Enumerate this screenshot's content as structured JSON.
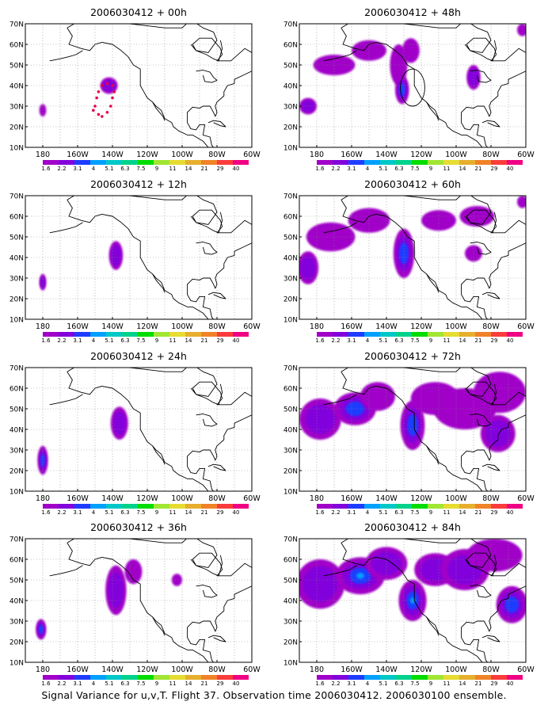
{
  "caption": "Signal Variance for u,v,T. Flight 37. Observation time 2006030412. 2006030100 ensemble.",
  "axes": {
    "y_ticks": [
      "10N",
      "20N",
      "30N",
      "40N",
      "50N",
      "60N",
      "70N"
    ],
    "x_ticks": [
      "180",
      "160W",
      "140W",
      "120W",
      "100W",
      "80W",
      "60W"
    ],
    "x_range_deg_east": [
      -190,
      -60
    ],
    "y_range_deg_north": [
      10,
      70
    ],
    "grid": "dotted"
  },
  "colorbar": {
    "labels": [
      "1.6",
      "2.2",
      "3.1",
      "4",
      "5.1",
      "6.3",
      "7.5",
      "9",
      "11",
      "14",
      "21",
      "29",
      "40"
    ],
    "colors": [
      "#a000c8",
      "#8200dc",
      "#1e3cff",
      "#00a0ff",
      "#00c8c8",
      "#00d28c",
      "#00dc00",
      "#a0e632",
      "#e6dc32",
      "#e6af2d",
      "#f08228",
      "#fa3c3c",
      "#f00082"
    ]
  },
  "chart_data": [
    {
      "type": "heatmap",
      "title": "2006030412 + 00h",
      "field": "signal variance",
      "blobs": [
        {
          "lon": -180,
          "lat": 28,
          "rlon": 2,
          "rlat": 3,
          "level": 1
        },
        {
          "lon": -142,
          "lat": 40,
          "rlon": 5,
          "rlat": 4,
          "level": 2
        }
      ],
      "flight_track": [
        [
          -148,
          37
        ],
        [
          -149,
          34
        ],
        [
          -150,
          30
        ],
        [
          -151,
          28
        ],
        [
          -148,
          26
        ],
        [
          -146,
          25
        ],
        [
          -143,
          27
        ],
        [
          -141,
          30
        ],
        [
          -140,
          34
        ],
        [
          -139,
          37
        ],
        [
          -140,
          40
        ],
        [
          -143,
          41
        ],
        [
          -146,
          40
        ]
      ],
      "circle": null
    },
    {
      "type": "heatmap",
      "title": "2006030412 + 48h",
      "field": "signal variance",
      "blobs": [
        {
          "lon": -185,
          "lat": 30,
          "rlon": 5,
          "rlat": 4,
          "level": 2
        },
        {
          "lon": -170,
          "lat": 50,
          "rlon": 12,
          "rlat": 5,
          "level": 1
        },
        {
          "lon": -150,
          "lat": 57,
          "rlon": 10,
          "rlat": 5,
          "level": 1
        },
        {
          "lon": -133,
          "lat": 50,
          "rlon": 5,
          "rlat": 10,
          "level": 1
        },
        {
          "lon": -131,
          "lat": 38,
          "rlon": 4,
          "rlat": 7,
          "level": 3
        },
        {
          "lon": -126,
          "lat": 57,
          "rlon": 5,
          "rlat": 6,
          "level": 1
        },
        {
          "lon": -90,
          "lat": 44,
          "rlon": 4,
          "rlat": 6,
          "level": 2
        },
        {
          "lon": -62,
          "lat": 67,
          "rlon": 3,
          "rlat": 3,
          "level": 1
        }
      ],
      "flight_track": [],
      "circle": {
        "lon": -125,
        "lat": 39,
        "rlon": 7,
        "rlat": 9
      }
    },
    {
      "type": "heatmap",
      "title": "2006030412 + 12h",
      "field": "signal variance",
      "blobs": [
        {
          "lon": -180,
          "lat": 28,
          "rlon": 2,
          "rlat": 4,
          "level": 2
        },
        {
          "lon": -138,
          "lat": 41,
          "rlon": 4,
          "rlat": 7,
          "level": 2
        }
      ],
      "flight_track": [],
      "circle": null
    },
    {
      "type": "heatmap",
      "title": "2006030412 + 60h",
      "field": "signal variance",
      "blobs": [
        {
          "lon": -185,
          "lat": 35,
          "rlon": 6,
          "rlat": 8,
          "level": 2
        },
        {
          "lon": -172,
          "lat": 50,
          "rlon": 14,
          "rlat": 7,
          "level": 1
        },
        {
          "lon": -150,
          "lat": 58,
          "rlon": 12,
          "rlat": 6,
          "level": 1
        },
        {
          "lon": -130,
          "lat": 42,
          "rlon": 6,
          "rlat": 12,
          "level": 3
        },
        {
          "lon": -110,
          "lat": 58,
          "rlon": 10,
          "rlat": 5,
          "level": 1
        },
        {
          "lon": -88,
          "lat": 60,
          "rlon": 10,
          "rlat": 5,
          "level": 1
        },
        {
          "lon": -90,
          "lat": 42,
          "rlon": 5,
          "rlat": 4,
          "level": 1
        },
        {
          "lon": -62,
          "lat": 67,
          "rlon": 3,
          "rlat": 3,
          "level": 1
        }
      ],
      "flight_track": [],
      "circle": null
    },
    {
      "type": "heatmap",
      "title": "2006030412 + 24h",
      "field": "signal variance",
      "blobs": [
        {
          "lon": -180,
          "lat": 25,
          "rlon": 3,
          "rlat": 7,
          "level": 3
        },
        {
          "lon": -136,
          "lat": 43,
          "rlon": 5,
          "rlat": 8,
          "level": 2
        }
      ],
      "flight_track": [],
      "circle": null
    },
    {
      "type": "heatmap",
      "title": "2006030412 + 72h",
      "field": "signal variance",
      "blobs": [
        {
          "lon": -178,
          "lat": 45,
          "rlon": 12,
          "rlat": 10,
          "level": 2
        },
        {
          "lon": -158,
          "lat": 50,
          "rlon": 12,
          "rlat": 8,
          "level": 3
        },
        {
          "lon": -145,
          "lat": 56,
          "rlon": 10,
          "rlat": 7,
          "level": 1
        },
        {
          "lon": -125,
          "lat": 42,
          "rlon": 7,
          "rlat": 12,
          "level": 3
        },
        {
          "lon": -112,
          "lat": 55,
          "rlon": 14,
          "rlat": 8,
          "level": 1
        },
        {
          "lon": -95,
          "lat": 50,
          "rlon": 18,
          "rlat": 10,
          "level": 1
        },
        {
          "lon": -75,
          "lat": 58,
          "rlon": 15,
          "rlat": 10,
          "level": 1
        },
        {
          "lon": -76,
          "lat": 38,
          "rlon": 10,
          "rlat": 9,
          "level": 2
        }
      ],
      "flight_track": [],
      "circle": null
    },
    {
      "type": "heatmap",
      "title": "2006030412 + 36h",
      "field": "signal variance",
      "blobs": [
        {
          "lon": -181,
          "lat": 26,
          "rlon": 3,
          "rlat": 5,
          "level": 3
        },
        {
          "lon": -138,
          "lat": 45,
          "rlon": 6,
          "rlat": 12,
          "level": 2
        },
        {
          "lon": -128,
          "lat": 54,
          "rlon": 5,
          "rlat": 6,
          "level": 1
        },
        {
          "lon": -103,
          "lat": 50,
          "rlon": 3,
          "rlat": 3,
          "level": 1
        }
      ],
      "flight_track": [],
      "circle": null
    },
    {
      "type": "heatmap",
      "title": "2006030412 + 84h",
      "field": "signal variance",
      "blobs": [
        {
          "lon": -178,
          "lat": 48,
          "rlon": 14,
          "rlat": 12,
          "level": 2
        },
        {
          "lon": -155,
          "lat": 52,
          "rlon": 14,
          "rlat": 9,
          "level": 4
        },
        {
          "lon": -140,
          "lat": 58,
          "rlon": 12,
          "rlat": 8,
          "level": 2
        },
        {
          "lon": -125,
          "lat": 40,
          "rlon": 8,
          "rlat": 10,
          "level": 4
        },
        {
          "lon": -112,
          "lat": 55,
          "rlon": 12,
          "rlat": 8,
          "level": 2
        },
        {
          "lon": -95,
          "lat": 55,
          "rlon": 14,
          "rlat": 10,
          "level": 2
        },
        {
          "lon": -78,
          "lat": 62,
          "rlon": 16,
          "rlat": 8,
          "level": 1
        },
        {
          "lon": -68,
          "lat": 38,
          "rlon": 9,
          "rlat": 9,
          "level": 3
        }
      ],
      "flight_track": [],
      "circle": null
    }
  ]
}
